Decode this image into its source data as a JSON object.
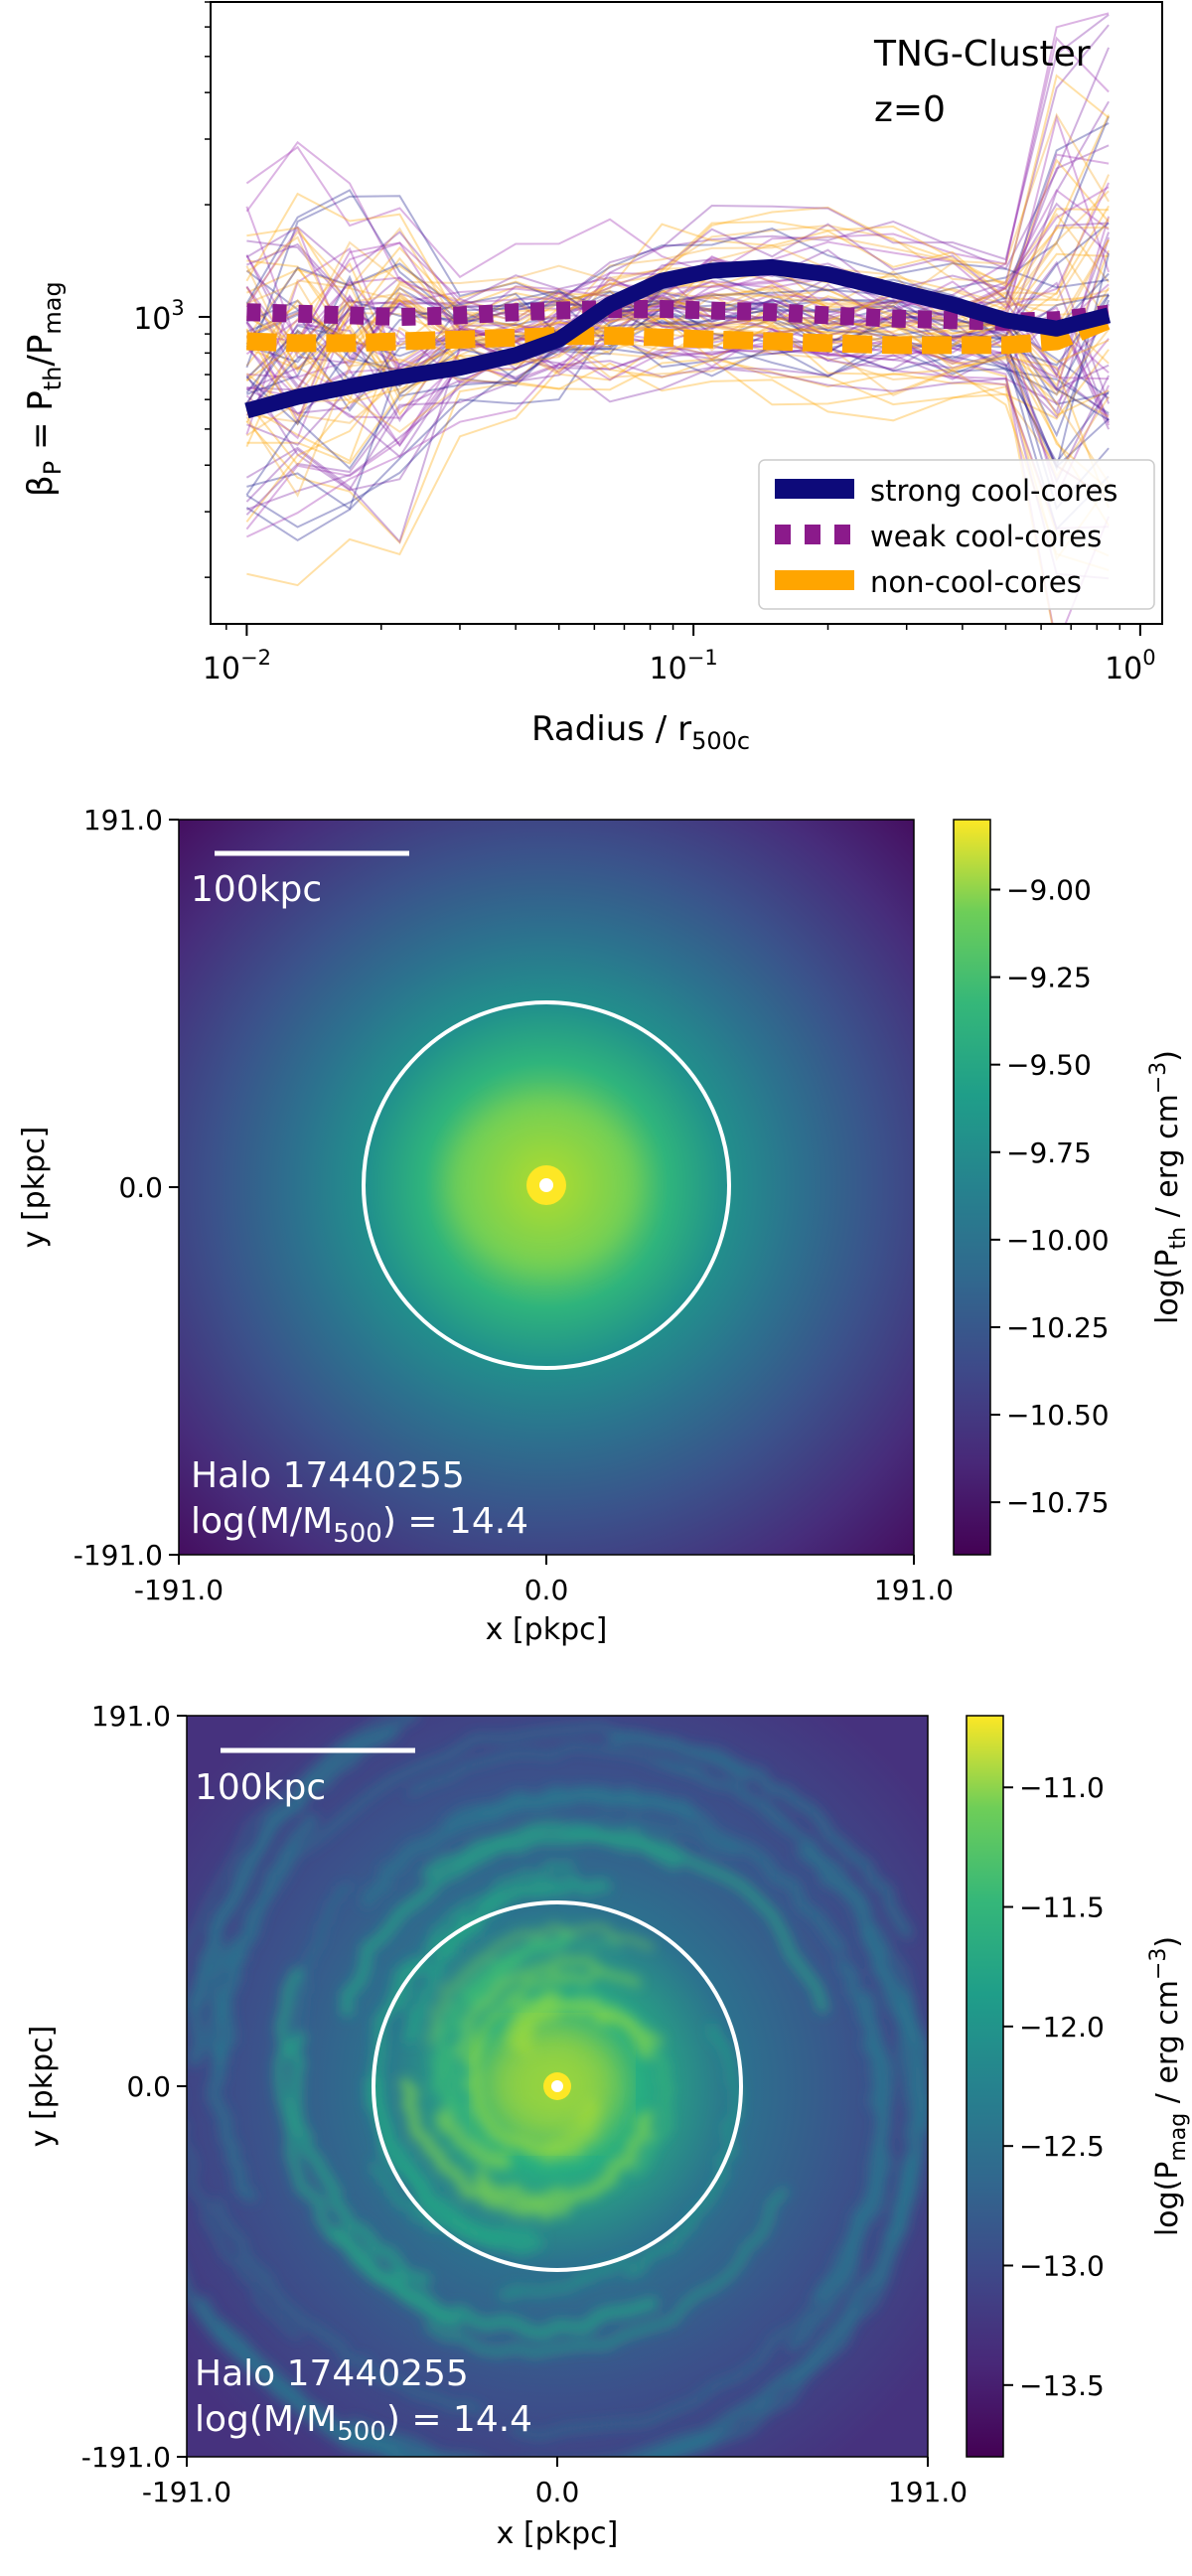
{
  "chart_data": [
    {
      "type": "line",
      "title": "TNG-Cluster",
      "subtitle": "z=0",
      "xlabel": "Radius / r",
      "xlabel_sub": "500c",
      "ylabel_parts": [
        "β",
        "P",
        " = P",
        "th",
        "/P",
        "mag"
      ],
      "x_scale": "log",
      "y_scale": "log",
      "xlim": [
        0.0083,
        1.12
      ],
      "ylim": [
        150,
        7000
      ],
      "x_ticks": [
        {
          "value": 0.01,
          "base": "10",
          "exp": "−2"
        },
        {
          "value": 0.1,
          "base": "10",
          "exp": "−1"
        },
        {
          "value": 1,
          "base": "10",
          "exp": "0"
        }
      ],
      "y_ticks": [
        {
          "value": 1000,
          "base": "10",
          "exp": "3"
        }
      ],
      "legend_position": "lower right",
      "series": [
        {
          "name": "strong cool-cores",
          "style": "solid",
          "color": "#0d0a7a",
          "x": [
            0.01,
            0.013,
            0.017,
            0.022,
            0.03,
            0.04,
            0.05,
            0.065,
            0.085,
            0.11,
            0.15,
            0.2,
            0.28,
            0.38,
            0.5,
            0.65,
            0.85
          ],
          "y": [
            560,
            610,
            650,
            690,
            730,
            790,
            870,
            1080,
            1250,
            1330,
            1360,
            1300,
            1180,
            1080,
            980,
            930,
            1010
          ]
        },
        {
          "name": "weak cool-cores",
          "style": "dotted",
          "color": "#8b1a8b",
          "x": [
            0.01,
            0.013,
            0.017,
            0.022,
            0.03,
            0.04,
            0.05,
            0.065,
            0.085,
            0.11,
            0.15,
            0.2,
            0.28,
            0.38,
            0.5,
            0.65,
            0.85
          ],
          "y": [
            1030,
            1020,
            1010,
            1000,
            1010,
            1030,
            1040,
            1050,
            1050,
            1040,
            1030,
            1010,
            990,
            980,
            970,
            980,
            1020
          ]
        },
        {
          "name": "non-cool-cores",
          "style": "dashed",
          "color": "#ffa500",
          "x": [
            0.01,
            0.013,
            0.017,
            0.022,
            0.03,
            0.04,
            0.05,
            0.065,
            0.085,
            0.11,
            0.15,
            0.2,
            0.28,
            0.38,
            0.5,
            0.65,
            0.85
          ],
          "y": [
            860,
            850,
            850,
            860,
            870,
            880,
            890,
            890,
            880,
            870,
            860,
            850,
            840,
            840,
            840,
            860,
            980
          ]
        }
      ]
    },
    {
      "type": "heatmap",
      "annotation_scale": "100kpc",
      "halo_label": "Halo 17440255",
      "mass_parts": [
        "log(M/M",
        "500",
        ") = 14.4"
      ],
      "xlabel": "x [pkpc]",
      "ylabel": "y [pkpc]",
      "x_ticks": [
        "-191.0",
        "0.0",
        "191.0"
      ],
      "y_ticks": [
        "191.0",
        "0.0",
        "-191.0"
      ],
      "colorbar_label_parts": [
        "log(P",
        "th",
        " / erg cm",
        "−3",
        ")"
      ],
      "colorbar_range": [
        -10.9,
        -8.8
      ],
      "colorbar_ticks": [
        {
          "value": -9.0,
          "label": "−9.00"
        },
        {
          "value": -9.25,
          "label": "−9.25"
        },
        {
          "value": -9.5,
          "label": "−9.50"
        },
        {
          "value": -9.75,
          "label": "−9.75"
        },
        {
          "value": -10.0,
          "label": "−10.00"
        },
        {
          "value": -10.25,
          "label": "−10.25"
        },
        {
          "value": -10.5,
          "label": "−10.50"
        },
        {
          "value": -10.75,
          "label": "−10.75"
        }
      ],
      "colormap": "viridis"
    },
    {
      "type": "heatmap",
      "annotation_scale": "100kpc",
      "halo_label": "Halo 17440255",
      "mass_parts": [
        "log(M/M",
        "500",
        ") = 14.4"
      ],
      "xlabel": "x [pkpc]",
      "ylabel": "y [pkpc]",
      "x_ticks": [
        "-191.0",
        "0.0",
        "191.0"
      ],
      "y_ticks": [
        "191.0",
        "0.0",
        "-191.0"
      ],
      "colorbar_label_parts": [
        "log(P",
        "mag",
        " / erg cm",
        "−3",
        ")"
      ],
      "colorbar_range": [
        -13.8,
        -10.7
      ],
      "colorbar_ticks": [
        {
          "value": -11.0,
          "label": "−11.0"
        },
        {
          "value": -11.5,
          "label": "−11.5"
        },
        {
          "value": -12.0,
          "label": "−12.0"
        },
        {
          "value": -12.5,
          "label": "−12.5"
        },
        {
          "value": -13.0,
          "label": "−13.0"
        },
        {
          "value": -13.5,
          "label": "−13.5"
        }
      ],
      "colormap": "viridis"
    }
  ]
}
